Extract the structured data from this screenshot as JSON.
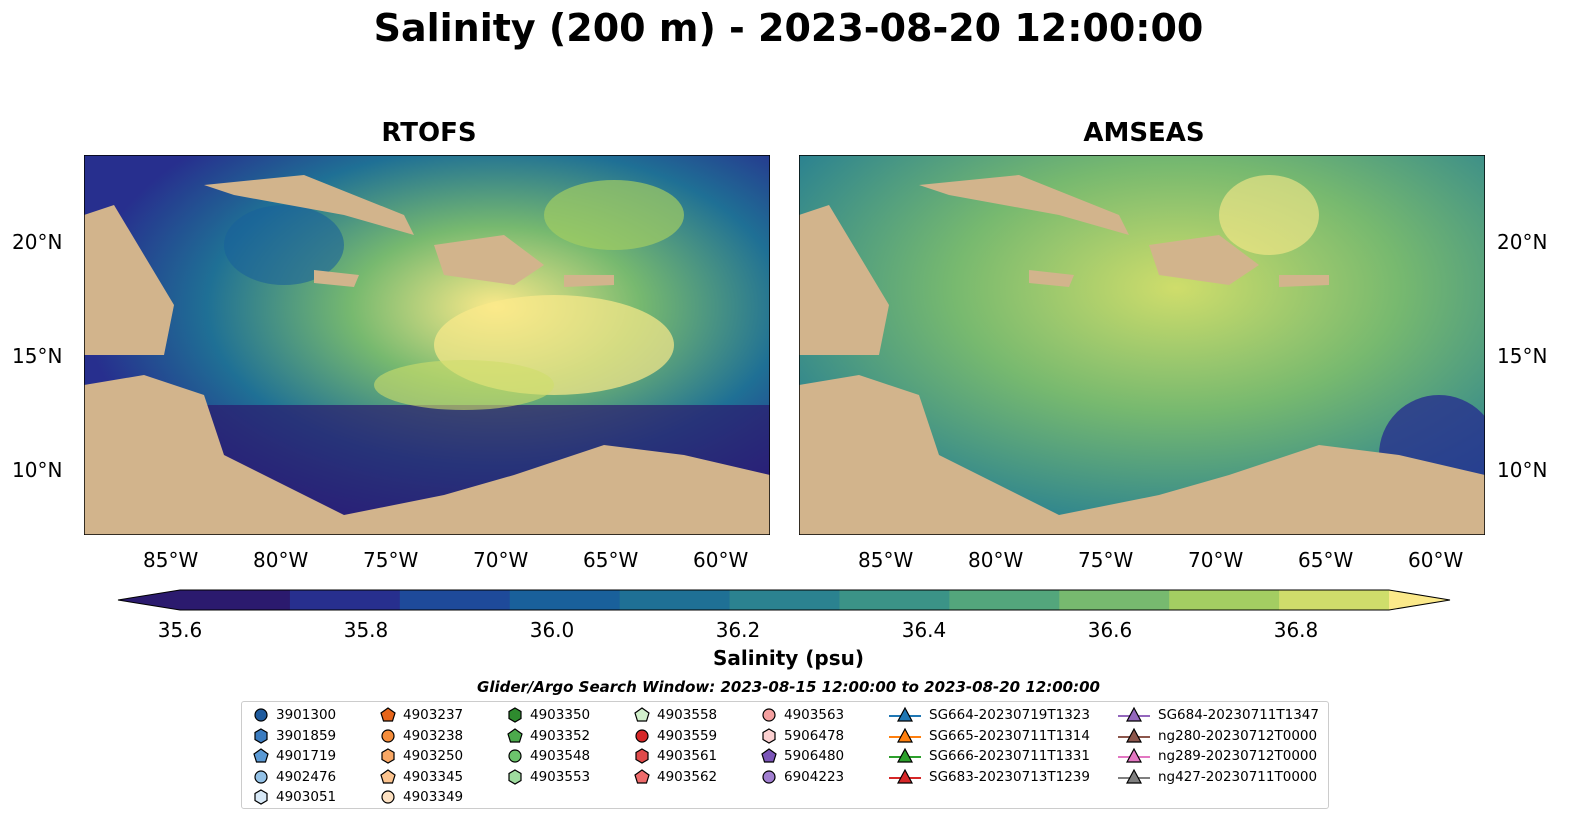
{
  "title": "Salinity (200 m) - 2023-08-20 12:00:00",
  "panels": [
    "RTOFS",
    "AMSEAS"
  ],
  "lon_ticks": [
    "85°W",
    "80°W",
    "75°W",
    "70°W",
    "65°W",
    "60°W"
  ],
  "lat_ticks": [
    "20°N",
    "15°N",
    "10°N"
  ],
  "colorbar": {
    "label": "Salinity (psu)",
    "ticks": [
      "35.6",
      "35.8",
      "36.0",
      "36.2",
      "36.4",
      "36.6",
      "36.8"
    ],
    "min": 35.6,
    "max": 36.9,
    "colors": [
      "#2b1a6e",
      "#272f8e",
      "#1e4a9a",
      "#19609b",
      "#1f7095",
      "#2b8290",
      "#3b9387",
      "#53a67c",
      "#77b96f",
      "#a3cd62",
      "#cfdd6b",
      "#fbe98a"
    ]
  },
  "search_window": "Glider/Argo Search Window: 2023-08-15 12:00:00 to 2023-08-20 12:00:00",
  "colors": {
    "land": "#d2b48c",
    "shelf": "#98b4e0",
    "ocean_low": "#2b1a6e",
    "ocean_high": "#fbe98a"
  },
  "legend": [
    {
      "label": "3901300",
      "marker": "circle",
      "color": "#1f5b9e"
    },
    {
      "label": "3901859",
      "marker": "hexagon",
      "color": "#3b7cc0"
    },
    {
      "label": "4901719",
      "marker": "pentagon",
      "color": "#5b9ad5"
    },
    {
      "label": "4902476",
      "marker": "circle",
      "color": "#93c1e6"
    },
    {
      "label": "4903051",
      "marker": "hexagon",
      "color": "#d8e9f7"
    },
    {
      "label": "4903237",
      "marker": "pentagon",
      "color": "#e6651a"
    },
    {
      "label": "4903238",
      "marker": "circle",
      "color": "#f58d3b"
    },
    {
      "label": "4903250",
      "marker": "hexagon",
      "color": "#f9a865"
    },
    {
      "label": "4903345",
      "marker": "pentagon",
      "color": "#fcc48f"
    },
    {
      "label": "4903349",
      "marker": "circle",
      "color": "#fde1c2"
    },
    {
      "label": "4903350",
      "marker": "hexagon",
      "color": "#2e8b2e"
    },
    {
      "label": "4903352",
      "marker": "pentagon",
      "color": "#4caa4c"
    },
    {
      "label": "4903548",
      "marker": "circle",
      "color": "#6cc46c"
    },
    {
      "label": "4903553",
      "marker": "hexagon",
      "color": "#9fdb9f"
    },
    {
      "label": "4903558",
      "marker": "pentagon",
      "color": "#d2f0cc"
    },
    {
      "label": "4903559",
      "marker": "circle",
      "color": "#d62728"
    },
    {
      "label": "4903561",
      "marker": "hexagon",
      "color": "#e04a4a"
    },
    {
      "label": "4903562",
      "marker": "pentagon",
      "color": "#ee6b6b"
    },
    {
      "label": "4903563",
      "marker": "circle",
      "color": "#f4a0a0"
    },
    {
      "label": "5906478",
      "marker": "hexagon",
      "color": "#fbd0d0"
    },
    {
      "label": "5906480",
      "marker": "pentagon",
      "color": "#7b55b8"
    },
    {
      "label": "6904223",
      "marker": "circle",
      "color": "#a17fd0"
    },
    {
      "label": "SG664-20230719T1323",
      "marker": "triangle-line",
      "color": "#1f77b4"
    },
    {
      "label": "SG665-20230711T1314",
      "marker": "triangle-line",
      "color": "#ff7f0e"
    },
    {
      "label": "SG666-20230711T1331",
      "marker": "triangle-line",
      "color": "#2ca02c"
    },
    {
      "label": "SG683-20230713T1239",
      "marker": "triangle-line",
      "color": "#d62728"
    },
    {
      "label": "SG684-20230711T1347",
      "marker": "triangle-line",
      "color": "#9467bd"
    },
    {
      "label": "ng280-20230712T0000",
      "marker": "triangle-line",
      "color": "#8c564b"
    },
    {
      "label": "ng289-20230712T0000",
      "marker": "triangle-line",
      "color": "#e377c2"
    },
    {
      "label": "ng427-20230711T0000",
      "marker": "triangle-line",
      "color": "#7f7f7f"
    }
  ]
}
